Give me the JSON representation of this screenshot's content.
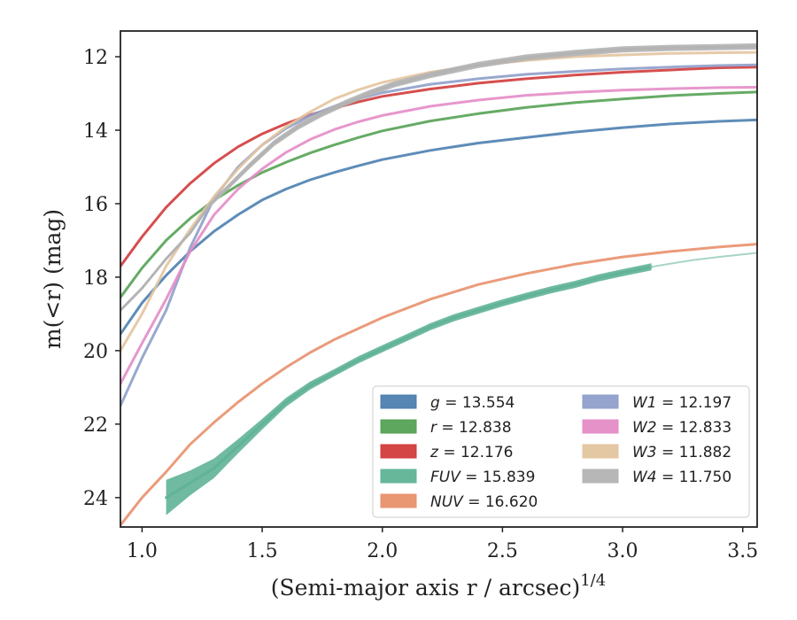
{
  "chart_data": {
    "type": "line",
    "xlabel": "(Semi-major axis r / arcsec)",
    "xlabel_sup": "1/4",
    "ylabel": "m(<r) (mag)",
    "xlim": [
      0.91,
      3.56
    ],
    "ylim": [
      24.8,
      11.3
    ],
    "y_inverted": true,
    "xticks": [
      1.0,
      1.5,
      2.0,
      2.5,
      3.0,
      3.5
    ],
    "xtick_labels": [
      "1.0",
      "1.5",
      "2.0",
      "2.5",
      "3.0",
      "3.5"
    ],
    "yticks": [
      12,
      14,
      16,
      18,
      20,
      22,
      24
    ],
    "ytick_labels": [
      "12",
      "14",
      "16",
      "18",
      "20",
      "22",
      "24"
    ],
    "grid": false,
    "legend_position": "bottom-right",
    "legend_columns": 2,
    "series": [
      {
        "name": "g",
        "label": "g = 13.554",
        "color": "#4c7fb0",
        "x": [
          0.91,
          1.0,
          1.1,
          1.2,
          1.3,
          1.4,
          1.5,
          1.6,
          1.7,
          1.8,
          1.9,
          2.0,
          2.2,
          2.4,
          2.6,
          2.8,
          3.0,
          3.2,
          3.4,
          3.56
        ],
        "y": [
          19.55,
          18.7,
          17.95,
          17.3,
          16.75,
          16.3,
          15.9,
          15.6,
          15.35,
          15.15,
          14.97,
          14.8,
          14.55,
          14.35,
          14.2,
          14.05,
          13.93,
          13.83,
          13.76,
          13.72
        ],
        "width": [
          3,
          3,
          3,
          3,
          3,
          3,
          3,
          3,
          3,
          3,
          3,
          3,
          3,
          3,
          3,
          3,
          3,
          3,
          3,
          3
        ]
      },
      {
        "name": "r",
        "label": "r = 12.838",
        "color": "#55a255",
        "x": [
          0.91,
          1.0,
          1.1,
          1.2,
          1.3,
          1.4,
          1.5,
          1.6,
          1.7,
          1.8,
          1.9,
          2.0,
          2.2,
          2.4,
          2.6,
          2.8,
          3.0,
          3.2,
          3.4,
          3.56
        ],
        "y": [
          18.55,
          17.75,
          17.0,
          16.4,
          15.9,
          15.5,
          15.15,
          14.87,
          14.62,
          14.4,
          14.2,
          14.02,
          13.75,
          13.55,
          13.38,
          13.25,
          13.15,
          13.06,
          13.0,
          12.96
        ],
        "width": [
          3,
          3,
          3,
          3,
          3,
          3,
          3,
          3,
          3,
          3,
          3,
          3,
          3,
          3,
          3,
          3,
          3,
          3,
          3,
          3
        ]
      },
      {
        "name": "z",
        "label": "z = 12.176",
        "color": "#d23b3b",
        "x": [
          0.91,
          1.0,
          1.1,
          1.2,
          1.3,
          1.4,
          1.5,
          1.6,
          1.7,
          1.8,
          1.9,
          2.0,
          2.2,
          2.4,
          2.6,
          2.8,
          3.0,
          3.2,
          3.4,
          3.56
        ],
        "y": [
          17.7,
          16.9,
          16.1,
          15.45,
          14.9,
          14.45,
          14.1,
          13.82,
          13.58,
          13.4,
          13.23,
          13.08,
          12.88,
          12.72,
          12.6,
          12.5,
          12.42,
          12.36,
          12.3,
          12.28
        ],
        "width": [
          3,
          3,
          3,
          3,
          3,
          3,
          3,
          3,
          3,
          3,
          3,
          3,
          3,
          3,
          3,
          3,
          3,
          3,
          3,
          3
        ]
      },
      {
        "name": "FUV",
        "label": "FUV = 15.839",
        "color": "#5fb396",
        "x": [
          1.1,
          1.2,
          1.3,
          1.4,
          1.5,
          1.6,
          1.7,
          1.8,
          1.9,
          2.0,
          2.1,
          2.2,
          2.3,
          2.4,
          2.5,
          2.6,
          2.7,
          2.8,
          2.9,
          3.0,
          3.12
        ],
        "y": [
          24.0,
          23.6,
          23.2,
          22.6,
          22.0,
          21.4,
          20.95,
          20.6,
          20.25,
          19.95,
          19.65,
          19.35,
          19.1,
          18.9,
          18.7,
          18.52,
          18.35,
          18.2,
          18.02,
          17.88,
          17.72
        ],
        "width": [
          40,
          28,
          22,
          16,
          12,
          10,
          9,
          8,
          8,
          8,
          8,
          8,
          8,
          8,
          8,
          8,
          8,
          8,
          8,
          8,
          8
        ]
      },
      {
        "name": "FUV_ext",
        "label": "",
        "color": "#9fcfbe",
        "x": [
          3.12,
          3.2,
          3.3,
          3.4,
          3.5,
          3.56
        ],
        "y": [
          17.72,
          17.63,
          17.53,
          17.45,
          17.38,
          17.34
        ],
        "width": [
          2,
          2,
          2,
          2,
          2,
          2
        ]
      },
      {
        "name": "NUV",
        "label": "NUV = 16.620",
        "color": "#e8906c",
        "x": [
          0.91,
          1.0,
          1.1,
          1.2,
          1.3,
          1.4,
          1.5,
          1.6,
          1.7,
          1.8,
          1.9,
          2.0,
          2.2,
          2.4,
          2.6,
          2.8,
          3.0,
          3.2,
          3.4,
          3.56
        ],
        "y": [
          24.75,
          24.0,
          23.3,
          22.55,
          21.95,
          21.4,
          20.9,
          20.45,
          20.05,
          19.7,
          19.4,
          19.1,
          18.6,
          18.2,
          17.9,
          17.65,
          17.45,
          17.3,
          17.18,
          17.1
        ],
        "width": [
          3,
          3,
          3,
          3,
          3,
          3,
          3,
          3,
          3,
          3,
          3,
          3,
          3,
          3,
          3,
          3,
          3,
          3,
          3,
          3
        ]
      },
      {
        "name": "W1",
        "label": "W1 = 12.197",
        "color": "#8f9fca",
        "x": [
          0.91,
          1.0,
          1.1,
          1.2,
          1.3,
          1.4,
          1.5,
          1.6,
          1.7,
          1.8,
          1.9,
          2.0,
          2.2,
          2.4,
          2.6,
          2.8,
          3.0,
          3.2,
          3.4,
          3.56
        ],
        "y": [
          21.5,
          20.2,
          18.9,
          17.2,
          15.85,
          15.0,
          14.4,
          13.95,
          13.6,
          13.35,
          13.15,
          12.98,
          12.75,
          12.6,
          12.48,
          12.4,
          12.33,
          12.28,
          12.24,
          12.22
        ],
        "width": [
          3,
          3,
          3,
          3,
          3,
          3,
          3,
          3,
          3,
          3,
          3,
          3,
          3,
          3,
          3,
          3,
          3,
          3,
          3,
          3
        ]
      },
      {
        "name": "W2",
        "label": "W2 = 12.833",
        "color": "#e48cc6",
        "x": [
          0.91,
          1.0,
          1.1,
          1.2,
          1.3,
          1.4,
          1.5,
          1.6,
          1.7,
          1.8,
          1.9,
          2.0,
          2.2,
          2.4,
          2.6,
          2.8,
          3.0,
          3.2,
          3.4,
          3.56
        ],
        "y": [
          20.9,
          19.8,
          18.6,
          17.3,
          16.3,
          15.6,
          15.05,
          14.6,
          14.25,
          13.98,
          13.77,
          13.6,
          13.35,
          13.18,
          13.05,
          12.97,
          12.91,
          12.87,
          12.84,
          12.83
        ],
        "width": [
          3,
          3,
          3,
          3,
          3,
          3,
          3,
          3,
          3,
          3,
          3,
          3,
          3,
          3,
          3,
          3,
          3,
          3,
          3,
          3
        ]
      },
      {
        "name": "W3",
        "label": "W3 = 11.882",
        "color": "#e3c49e",
        "x": [
          0.91,
          1.0,
          1.1,
          1.2,
          1.3,
          1.4,
          1.5,
          1.6,
          1.7,
          1.8,
          1.9,
          2.0,
          2.2,
          2.4,
          2.6,
          2.8,
          3.0,
          3.2,
          3.4,
          3.56
        ],
        "y": [
          20.0,
          19.0,
          17.7,
          16.7,
          15.8,
          15.05,
          14.4,
          13.9,
          13.5,
          13.15,
          12.9,
          12.7,
          12.42,
          12.23,
          12.1,
          12.0,
          11.95,
          11.91,
          11.89,
          11.88
        ],
        "width": [
          3,
          3,
          3,
          3,
          3,
          3,
          3,
          3,
          3,
          3,
          3,
          3,
          3,
          3,
          3,
          3,
          3,
          3,
          3,
          3
        ]
      },
      {
        "name": "W4",
        "label": "W4 = 11.750",
        "color": "#b3b3b3",
        "x": [
          0.91,
          1.0,
          1.1,
          1.2,
          1.28,
          1.35,
          1.45,
          1.55,
          1.65,
          1.75,
          1.85,
          1.95,
          2.05,
          2.2,
          2.4,
          2.6,
          2.8,
          3.0,
          3.2,
          3.4,
          3.56
        ],
        "y": [
          18.9,
          18.3,
          17.5,
          16.8,
          16.05,
          15.6,
          14.95,
          14.35,
          13.9,
          13.55,
          13.25,
          12.98,
          12.75,
          12.5,
          12.22,
          12.02,
          11.9,
          11.8,
          11.76,
          11.74,
          11.72
        ],
        "width": [
          3,
          3,
          3,
          3,
          5,
          6,
          7,
          7,
          7,
          7,
          7,
          7,
          7,
          7,
          7,
          7,
          7,
          7,
          7,
          7,
          7
        ]
      }
    ],
    "legend": [
      {
        "label_var": "g",
        "label_val": "= 13.554",
        "color": "#4c7fb0"
      },
      {
        "label_var": "r",
        "label_val": "= 12.838",
        "color": "#55a255"
      },
      {
        "label_var": "z",
        "label_val": "= 12.176",
        "color": "#d23b3b"
      },
      {
        "label_var": "FUV",
        "label_val": "= 15.839",
        "color": "#5fb396"
      },
      {
        "label_var": "NUV",
        "label_val": "= 16.620",
        "color": "#e8906c"
      },
      {
        "label_var": "W1",
        "label_val": "= 12.197",
        "color": "#8f9fca"
      },
      {
        "label_var": "W2",
        "label_val": "= 12.833",
        "color": "#e48cc6"
      },
      {
        "label_var": "W3",
        "label_val": "= 11.882",
        "color": "#e3c49e"
      },
      {
        "label_var": "W4",
        "label_val": "= 11.750",
        "color": "#b3b3b3"
      }
    ]
  }
}
